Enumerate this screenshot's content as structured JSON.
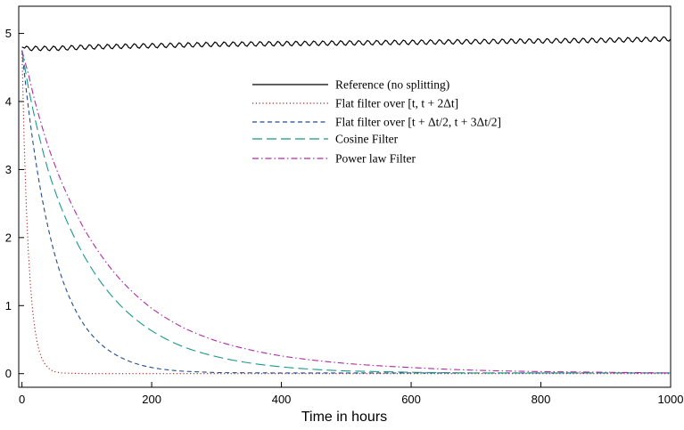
{
  "chart_data": {
    "type": "line",
    "title": "",
    "xlabel": "Time in hours",
    "ylabel": "",
    "xlim": [
      -5,
      1000
    ],
    "ylim": [
      -0.2,
      5.4
    ],
    "xticks": [
      0,
      200,
      400,
      600,
      800,
      1000
    ],
    "yticks": [
      0,
      1,
      2,
      3,
      4,
      5
    ],
    "grid": false,
    "legend_position": "upper-center",
    "series": [
      {
        "name": "Reference (no splitting)",
        "color": "#000000",
        "style": "solid",
        "x": [
          0,
          5,
          10,
          50,
          100,
          200,
          300,
          400,
          500,
          600,
          700,
          800,
          900,
          1000
        ],
        "y": [
          4.8,
          4.78,
          4.78,
          4.78,
          4.8,
          4.82,
          4.84,
          4.85,
          4.86,
          4.87,
          4.88,
          4.89,
          4.9,
          4.92
        ]
      },
      {
        "name": "Flat filter over [t, t + 2Δt]",
        "color": "#b22222",
        "style": "dotted",
        "x": [
          0,
          2,
          5,
          10,
          15,
          20,
          25,
          30,
          40,
          50,
          60,
          100,
          200,
          400,
          600,
          800,
          1000
        ],
        "y": [
          4.75,
          3.9,
          2.9,
          1.76,
          1.07,
          0.65,
          0.39,
          0.24,
          0.09,
          0.03,
          0.01,
          0,
          0,
          0,
          0,
          0,
          0
        ]
      },
      {
        "name": "Flat filter over [t + Δt/2, t + 3Δt/2]",
        "color": "#1f4e8c",
        "style": "dashed",
        "x": [
          0,
          10,
          20,
          40,
          60,
          80,
          100,
          150,
          200,
          250,
          300,
          400,
          500,
          600,
          800,
          1000
        ],
        "y": [
          4.75,
          3.9,
          3.2,
          2.16,
          1.45,
          0.98,
          0.66,
          0.25,
          0.09,
          0.035,
          0.015,
          0.01,
          0.01,
          0.01,
          0.01,
          0.01
        ]
      },
      {
        "name": "Cosine Filter",
        "color": "#1a9988",
        "style": "longdash",
        "x": [
          0,
          10,
          20,
          40,
          60,
          80,
          100,
          150,
          200,
          250,
          300,
          400,
          500,
          600,
          700,
          800,
          1000
        ],
        "y": [
          4.75,
          4.2,
          3.75,
          3.0,
          2.45,
          2.02,
          1.66,
          1.02,
          0.63,
          0.39,
          0.25,
          0.1,
          0.04,
          0.02,
          0.01,
          0.01,
          0.01
        ]
      },
      {
        "name": "Power law Filter",
        "color": "#b02aa8",
        "style": "dashdot",
        "x": [
          0,
          10,
          20,
          40,
          60,
          80,
          100,
          150,
          200,
          250,
          300,
          400,
          500,
          600,
          700,
          800,
          1000
        ],
        "y": [
          4.75,
          4.4,
          4.0,
          3.35,
          2.84,
          2.42,
          2.06,
          1.4,
          0.96,
          0.67,
          0.48,
          0.26,
          0.15,
          0.09,
          0.05,
          0.03,
          0.01
        ]
      }
    ]
  }
}
